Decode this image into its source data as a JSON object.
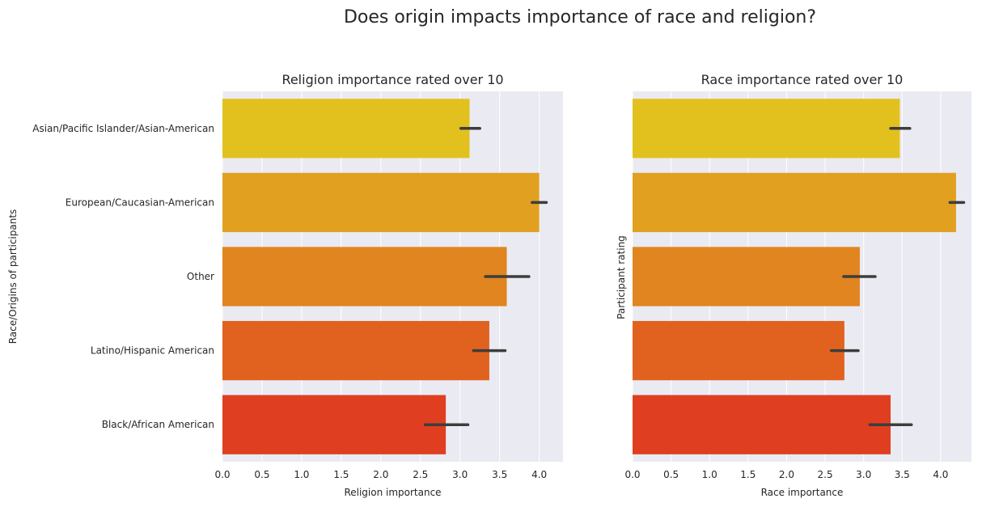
{
  "figure": {
    "title": "Does origin impacts importance of race and religion?"
  },
  "chart_data": [
    {
      "type": "bar",
      "orientation": "horizontal",
      "title": "Religion importance rated over 10",
      "xlabel": "Religion importance",
      "ylabel": "Race/Origins of participants",
      "xlim": [
        0,
        4.3
      ],
      "xticks": [
        "0.0",
        "0.5",
        "1.0",
        "1.5",
        "2.0",
        "2.5",
        "3.0",
        "3.5",
        "4.0"
      ],
      "grid": true,
      "categories": [
        "Asian/Pacific Islander/Asian-American",
        "European/Caucasian-American",
        "Other",
        "Latino/Hispanic American",
        "Black/African American"
      ],
      "values": [
        3.12,
        4.0,
        3.59,
        3.37,
        2.82
      ],
      "error_low": [
        3.01,
        3.91,
        3.32,
        3.17,
        2.56
      ],
      "error_high": [
        3.25,
        4.09,
        3.87,
        3.57,
        3.1
      ],
      "colors": [
        "#e2c11f",
        "#e1a020",
        "#e0851f",
        "#e1621f",
        "#e03e20"
      ]
    },
    {
      "type": "bar",
      "orientation": "horizontal",
      "title": "Race importance rated over 10",
      "xlabel": "Race importance",
      "ylabel": "Participant rating",
      "xlim": [
        0,
        4.4
      ],
      "xticks": [
        "0.0",
        "0.5",
        "1.0",
        "1.5",
        "2.0",
        "2.5",
        "3.0",
        "3.5",
        "4.0"
      ],
      "grid": true,
      "categories": [
        "Asian/Pacific Islander/Asian-American",
        "European/Caucasian-American",
        "Other",
        "Latino/Hispanic American",
        "Black/African American"
      ],
      "values": [
        3.47,
        4.2,
        2.95,
        2.75,
        3.35
      ],
      "error_low": [
        3.35,
        4.12,
        2.74,
        2.58,
        3.08
      ],
      "error_high": [
        3.6,
        4.3,
        3.15,
        2.93,
        3.62
      ],
      "colors": [
        "#e2c11f",
        "#e1a020",
        "#e0851f",
        "#e1621f",
        "#e03e20"
      ]
    }
  ]
}
